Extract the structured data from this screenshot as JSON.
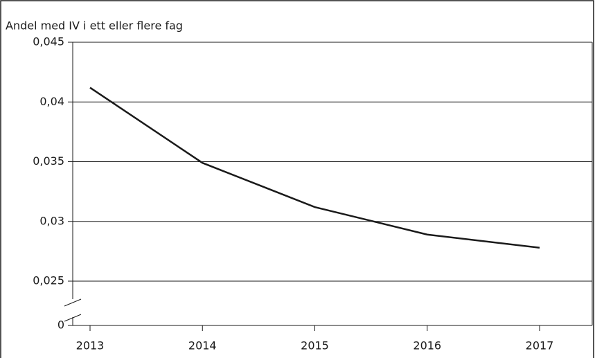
{
  "chart_data": {
    "type": "line",
    "title": "Andel med IV i ett eller flere fag",
    "categories": [
      "2013",
      "2014",
      "2015",
      "2016",
      "2017"
    ],
    "series": [
      {
        "color": "#1a1a1a",
        "values": [
          0.0412,
          0.0349,
          0.0312,
          0.0289,
          0.0278
        ]
      }
    ],
    "ylim": [
      0,
      0.045
    ],
    "y_break": [
      0,
      0.025
    ],
    "yticks": [
      0,
      {
        "value": 0.025,
        "label": "0,025"
      },
      {
        "value": 0.03,
        "label": "0,03"
      },
      {
        "value": 0.035,
        "label": "0,035"
      },
      {
        "value": 0.04,
        "label": "0,04"
      },
      {
        "value": 0.045,
        "label": "0,045"
      }
    ],
    "grid": true
  }
}
